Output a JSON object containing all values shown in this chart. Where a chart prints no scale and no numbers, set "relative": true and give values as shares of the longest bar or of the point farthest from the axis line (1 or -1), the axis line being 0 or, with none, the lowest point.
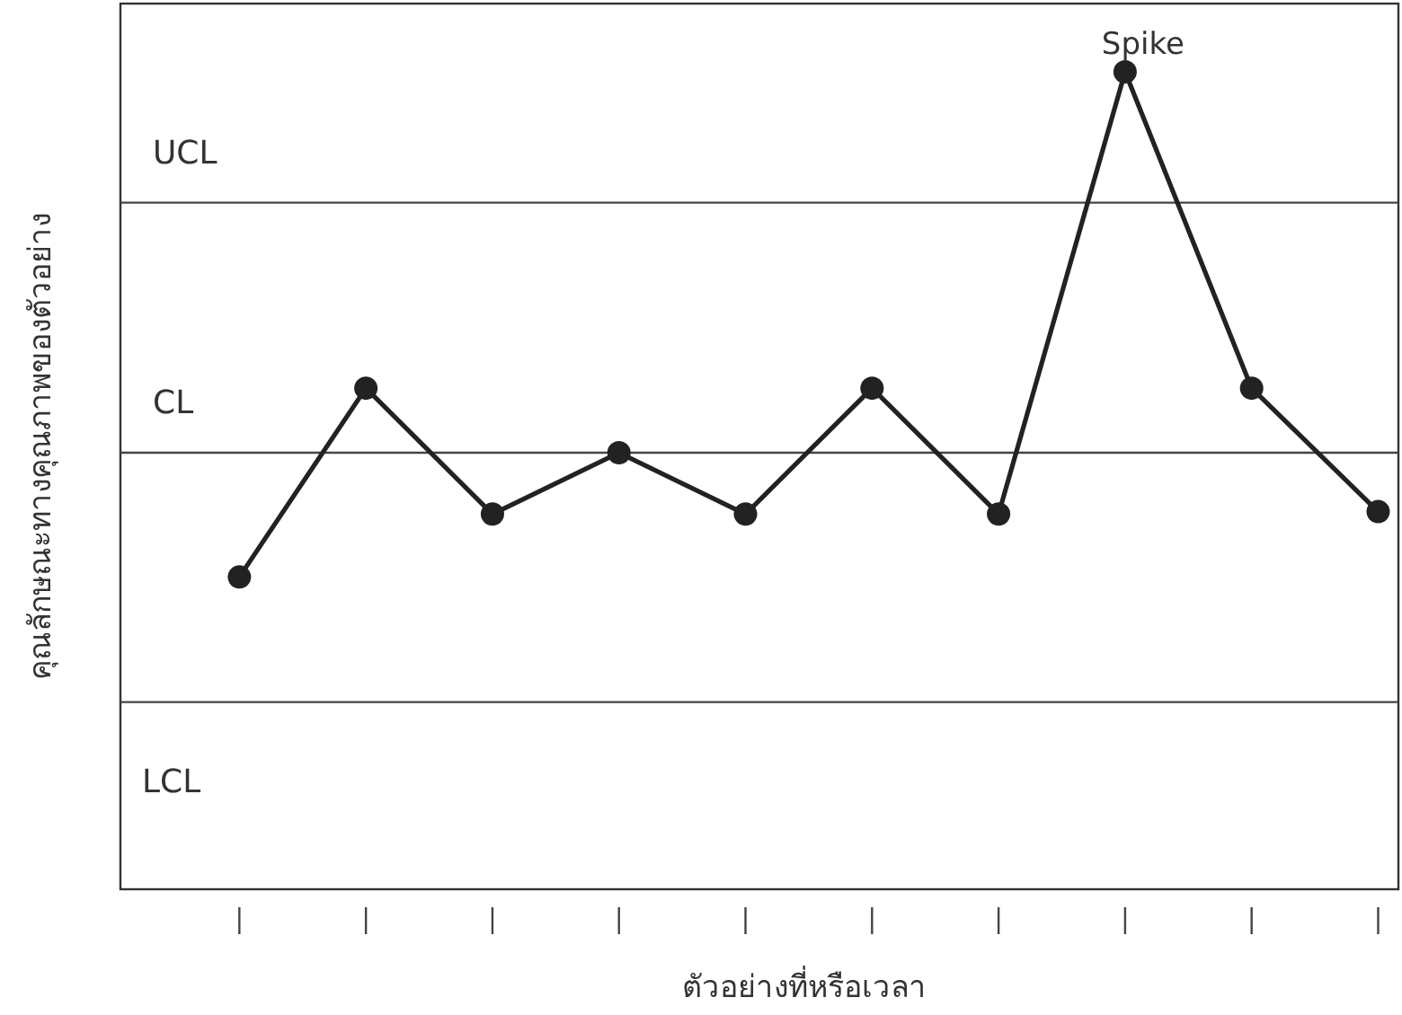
{
  "chart_data": {
    "type": "line",
    "relative": true,
    "xlabel": "ตัวอย่างที่หรือเวลา",
    "ylabel": "คุณลักษณะทางคุณภาพของตัวอย่าง",
    "categories": [
      null,
      null,
      null,
      null,
      null,
      null,
      null,
      null,
      null,
      null
    ],
    "series": [
      {
        "color": "#222222",
        "values": [
          0.382,
          0.613,
          0.459,
          0.534,
          0.459,
          0.613,
          0.459,
          1,
          0.613,
          0.462
        ]
      }
    ],
    "ref_lines": [
      {
        "axis": "y",
        "value": 0.84,
        "label": "UCL",
        "color": "#444444",
        "line_style": "solid"
      },
      {
        "axis": "y",
        "value": 0.534,
        "label": "CL",
        "color": "#444444",
        "line_style": "solid"
      },
      {
        "axis": "y",
        "value": 0.229,
        "label": "LCL",
        "color": "#444444",
        "line_style": "solid"
      }
    ],
    "annotations": [
      {
        "text": "Spike",
        "y": 1
      }
    ],
    "marker": "circle",
    "line_style": "solid",
    "grid": false
  }
}
